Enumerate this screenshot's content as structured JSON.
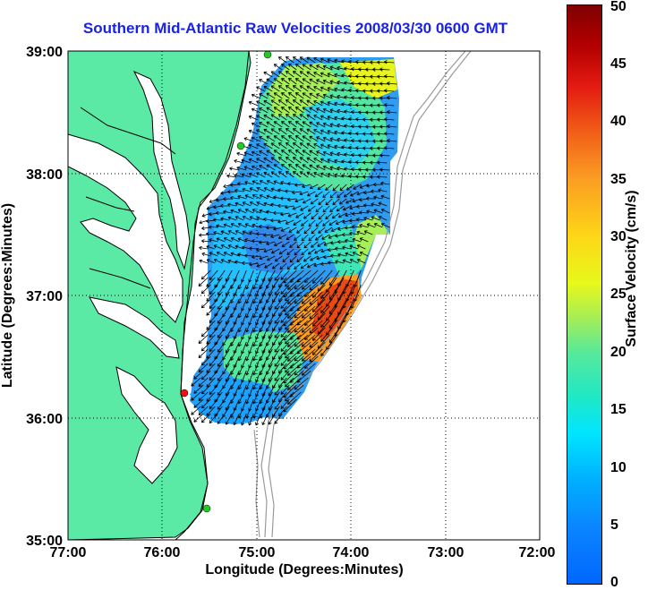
{
  "title": "Southern Mid-Atlantic Raw Velocities 2008/03/30 0600 GMT",
  "xlabel": "Longitude (Degrees:Minutes)",
  "ylabel": "Latitude (Degrees:Minutes)",
  "x_ticks": [
    "77:00",
    "76:00",
    "75:00",
    "74:00",
    "73:00",
    "72:00"
  ],
  "y_ticks": [
    "39:00",
    "38:00",
    "37:00",
    "36:00",
    "35:00"
  ],
  "colorbar": {
    "label": "Surface Velocity (cm/s)",
    "ticks": [
      "50",
      "45",
      "40",
      "35",
      "30",
      "25",
      "20",
      "15",
      "10",
      "5",
      "0"
    ],
    "range": [
      0,
      50
    ],
    "colormap": "jet"
  },
  "colors": {
    "title": "#1a22e6",
    "land": "#5aeaa6",
    "coast": "#000000",
    "bathymetry": "#9a9a9a",
    "station_green": "#22cc22",
    "station_red": "#ee1111"
  },
  "map_extent": {
    "lon": [
      -77,
      -72
    ],
    "lat": [
      35,
      39
    ]
  },
  "grid": "dotted"
}
